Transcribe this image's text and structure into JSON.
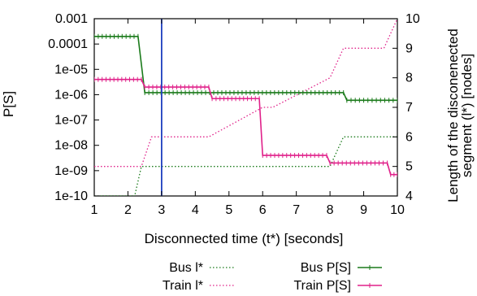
{
  "chart_data": {
    "type": "line",
    "title": "",
    "xlabel": "Disconnected time (t*) [seconds]",
    "ylabel_left": "P[S]",
    "ylabel_right_lines": [
      "Length of the disconenected",
      "segment (l*) [nodes]"
    ],
    "xlim": [
      1,
      10
    ],
    "ylim_left": [
      1e-10,
      0.001
    ],
    "ylim_right": [
      4,
      10
    ],
    "left_scale": "log",
    "x_ticks": [
      1,
      2,
      3,
      4,
      5,
      6,
      7,
      8,
      9,
      10
    ],
    "x_tick_labels": [
      "1",
      "2",
      "3",
      "4",
      "5",
      "6",
      "7",
      "8",
      "9",
      "10"
    ],
    "left_ticks": [
      1e-10,
      1e-09,
      1e-08,
      1e-07,
      1e-06,
      1e-05,
      0.0001,
      0.001
    ],
    "left_tick_labels": [
      "1e-10",
      "1e-09",
      "1e-08",
      "1e-07",
      "1e-06",
      "1e-05",
      "0.0001",
      "0.001"
    ],
    "right_ticks": [
      4,
      5,
      6,
      7,
      8,
      9,
      10
    ],
    "right_tick_labels": [
      "4",
      "5",
      "6",
      "7",
      "8",
      "9",
      "10"
    ],
    "vertical_marker_x": 3.0,
    "vertical_marker_color": "#1f3fbf",
    "legend_position": "bottom",
    "series": [
      {
        "name": "Bus l*",
        "axis": "right",
        "style": "dotted",
        "color": "#1a7a1a",
        "x": [
          1.0,
          2.2,
          2.2,
          2.4,
          2.4,
          8.0,
          8.0,
          8.4,
          8.4,
          10.0
        ],
        "y": [
          4,
          4,
          4,
          5,
          5,
          5,
          5,
          6,
          6,
          6
        ]
      },
      {
        "name": "Train l*",
        "axis": "right",
        "style": "dotted",
        "color": "#e0218a",
        "x": [
          1.0,
          2.4,
          2.4,
          2.7,
          2.7,
          4.4,
          4.4,
          6.0,
          6.0,
          6.3,
          6.3,
          8.0,
          8.0,
          8.4,
          8.4,
          9.6,
          9.6,
          10.0
        ],
        "y": [
          5,
          5,
          5,
          6,
          6,
          6,
          6,
          7,
          7,
          7,
          7,
          8,
          8,
          9,
          9,
          9,
          9,
          10
        ]
      },
      {
        "name": "Bus P[S]",
        "axis": "left",
        "style": "solid-markers",
        "color": "#1a7a1a",
        "x": [
          1.0,
          2.3,
          2.5,
          8.4,
          8.5,
          10.0
        ],
        "y": [
          0.0002,
          0.0002,
          1.2e-06,
          1.2e-06,
          6e-07,
          6e-07
        ]
      },
      {
        "name": "Train P[S]",
        "axis": "left",
        "style": "solid-markers",
        "color": "#e0218a",
        "x": [
          1.0,
          2.4,
          2.5,
          4.4,
          4.5,
          5.9,
          6.0,
          7.9,
          8.0,
          9.7,
          9.8,
          10.0
        ],
        "y": [
          4e-06,
          4e-06,
          2e-06,
          2e-06,
          7e-07,
          7e-07,
          4e-09,
          4e-09,
          2e-09,
          2e-09,
          7e-10,
          7e-10
        ]
      }
    ],
    "legend": [
      {
        "label": "Bus l*",
        "series": 0
      },
      {
        "label": "Train l*",
        "series": 1
      },
      {
        "label": "Bus P[S]",
        "series": 2
      },
      {
        "label": "Train P[S]",
        "series": 3
      }
    ]
  }
}
